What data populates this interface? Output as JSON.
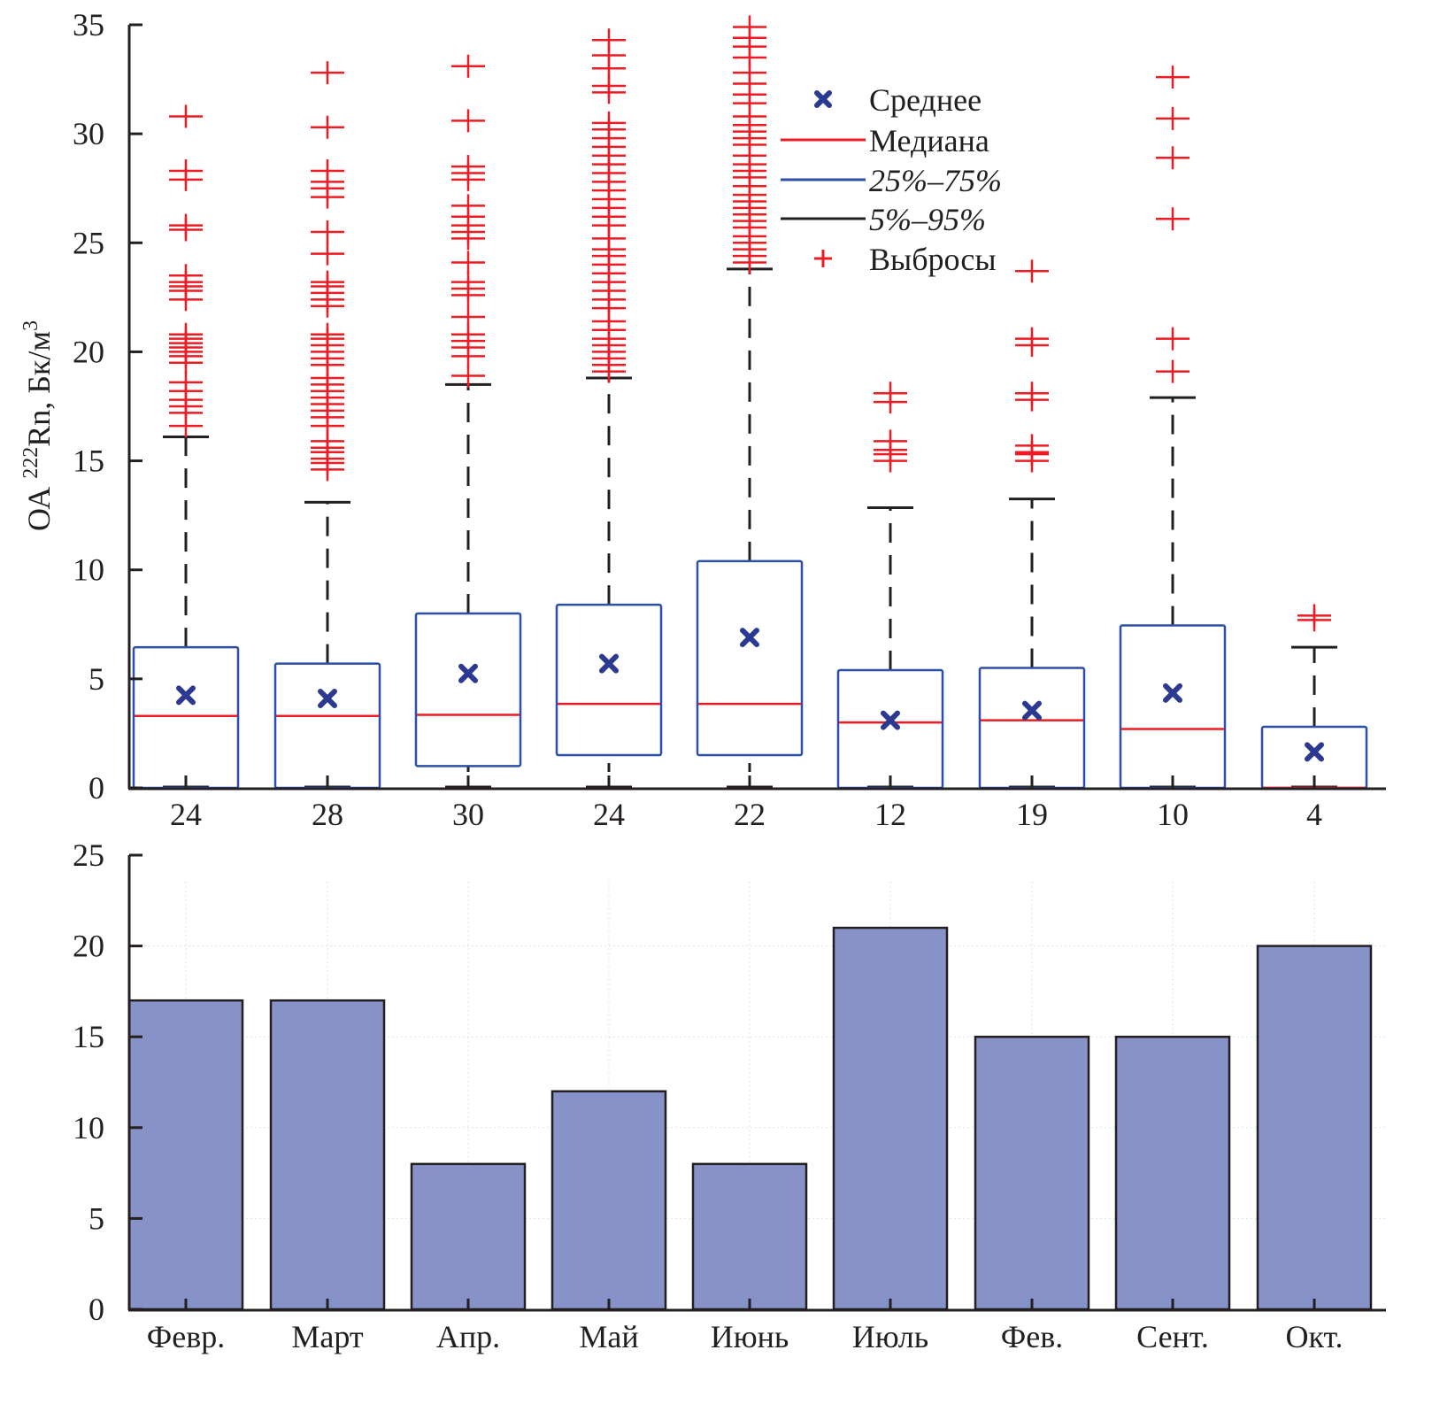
{
  "chart_data": [
    {
      "type": "box",
      "title": "",
      "ylabel": {
        "prefix": "ОА ",
        "superscript": "222",
        "main": "Rn, Бк/м",
        "unit_superscript": "3"
      },
      "xlabel": "",
      "ylim": [
        0,
        35
      ],
      "yticks": [
        0,
        5,
        10,
        15,
        20,
        25,
        30,
        35
      ],
      "categories": [
        "24",
        "28",
        "30",
        "24",
        "22",
        "12",
        "19",
        "10",
        "4"
      ],
      "grid": false,
      "legend": {
        "placement": "top-right",
        "entries": [
          {
            "label": "Среднее",
            "marker": "x",
            "color": "#2b3990"
          },
          {
            "label": "Медиана",
            "marker": "line",
            "color": "#ed1c24"
          },
          {
            "label": "25%–75%",
            "marker": "line",
            "color": "#2e4fa8"
          },
          {
            "label": "5%–95%",
            "marker": "line",
            "color": "#231f20"
          },
          {
            "label": "Выбросы",
            "marker": "+",
            "color": "#ed1c24"
          }
        ]
      },
      "colors": {
        "mean": "#2b3990",
        "median": "#ed1c24",
        "box": "#2e4fa8",
        "whisker": "#231f20",
        "outlier": "#ed1c24"
      },
      "series": [
        {
          "name": "24",
          "whisker_low": 0,
          "q1": 0,
          "median": 3.3,
          "q3": 6.45,
          "whisker_high": 16.1,
          "mean": 4.25,
          "outliers": [
            16.6,
            17.2,
            17.5,
            17.8,
            18.2,
            18.6,
            19.5,
            19.8,
            20.0,
            20.2,
            20.4,
            20.6,
            20.8,
            22.4,
            22.8,
            23.0,
            23.2,
            23.5,
            25.6,
            25.8,
            27.9,
            28.3,
            30.8
          ]
        },
        {
          "name": "28",
          "whisker_low": 0,
          "q1": 0,
          "median": 3.3,
          "q3": 5.7,
          "whisker_high": 13.1,
          "mean": 4.1,
          "outliers": [
            14.6,
            14.9,
            15.1,
            15.4,
            15.6,
            15.9,
            16.6,
            17.0,
            17.3,
            17.6,
            17.9,
            18.2,
            18.5,
            18.8,
            19.4,
            19.7,
            20.0,
            20.3,
            20.6,
            20.8,
            22.1,
            22.4,
            22.7,
            23.0,
            23.2,
            24.5,
            25.5,
            27.1,
            27.5,
            27.8,
            28.3,
            30.3,
            32.8
          ]
        },
        {
          "name": "30",
          "whisker_low": 0,
          "q1": 1.0,
          "median": 3.35,
          "q3": 8.0,
          "whisker_high": 18.5,
          "mean": 5.25,
          "outliers": [
            18.9,
            19.8,
            20.2,
            20.5,
            20.8,
            21.6,
            22.6,
            22.9,
            23.2,
            24.1,
            25.2,
            25.5,
            25.8,
            26.2,
            26.7,
            27.9,
            28.2,
            28.5,
            30.6,
            33.1
          ]
        },
        {
          "name": "24",
          "whisker_low": 0,
          "q1": 1.5,
          "median": 3.85,
          "q3": 8.4,
          "whisker_high": 18.8,
          "mean": 5.7,
          "outliers": [
            19.1,
            19.4,
            19.7,
            20.0,
            20.3,
            20.6,
            21.0,
            21.4,
            22.0,
            22.4,
            22.8,
            23.2,
            23.6,
            24.0,
            24.4,
            24.7,
            25.2,
            25.8,
            26.2,
            26.6,
            27.0,
            27.4,
            27.8,
            28.2,
            28.6,
            29.0,
            29.4,
            29.8,
            30.2,
            30.5,
            31.9,
            32.2,
            33.0,
            33.6,
            34.3
          ]
        },
        {
          "name": "22",
          "whisker_low": 0,
          "q1": 1.5,
          "median": 3.85,
          "q3": 10.4,
          "whisker_high": 23.8,
          "mean": 6.9,
          "outliers": [
            24.1,
            24.4,
            24.7,
            25.0,
            25.3,
            25.7,
            26.0,
            26.3,
            26.6,
            26.9,
            27.2,
            27.6,
            28.0,
            28.3,
            28.6,
            29.0,
            29.5,
            29.8,
            30.1,
            30.4,
            30.8,
            31.4,
            31.8,
            32.3,
            32.8,
            33.5,
            34.0,
            34.4,
            34.9
          ]
        },
        {
          "name": "12",
          "whisker_low": 0,
          "q1": 0,
          "median": 3.0,
          "q3": 5.4,
          "whisker_high": 12.85,
          "mean": 3.1,
          "outliers": [
            15.0,
            15.3,
            15.5,
            15.9,
            17.7,
            18.1
          ]
        },
        {
          "name": "19",
          "whisker_low": 0,
          "q1": 0,
          "median": 3.1,
          "q3": 5.5,
          "whisker_high": 13.25,
          "mean": 3.55,
          "outliers": [
            15.0,
            15.3,
            15.4,
            15.7,
            17.8,
            18.1,
            20.3,
            20.6,
            23.7
          ]
        },
        {
          "name": "10",
          "whisker_low": 0,
          "q1": 0,
          "median": 2.7,
          "q3": 7.45,
          "whisker_high": 17.9,
          "mean": 4.35,
          "outliers": [
            19.1,
            20.6,
            26.1,
            28.9,
            30.7,
            32.6
          ]
        },
        {
          "name": "4",
          "whisker_low": 0,
          "q1": 0,
          "median": 0,
          "q3": 2.8,
          "whisker_high": 6.45,
          "mean": 1.65,
          "outliers": [
            7.7,
            7.9
          ]
        }
      ]
    },
    {
      "type": "bar",
      "title": "",
      "xlabel": "",
      "ylabel": "",
      "ylim": [
        0,
        25
      ],
      "yticks": [
        0,
        5,
        10,
        15,
        20,
        25
      ],
      "grid": true,
      "categories": [
        "Февр.",
        "Март",
        "Апр.",
        "Май",
        "Июнь",
        "Июль",
        "Фев.",
        "Сент.",
        "Окт."
      ],
      "values": [
        17,
        17,
        8,
        12,
        8,
        21,
        15,
        15,
        20
      ],
      "colors": {
        "bar_fill": "#8793c8",
        "bar_edge": "#231f20",
        "grid": "#d6e6ef"
      }
    }
  ]
}
